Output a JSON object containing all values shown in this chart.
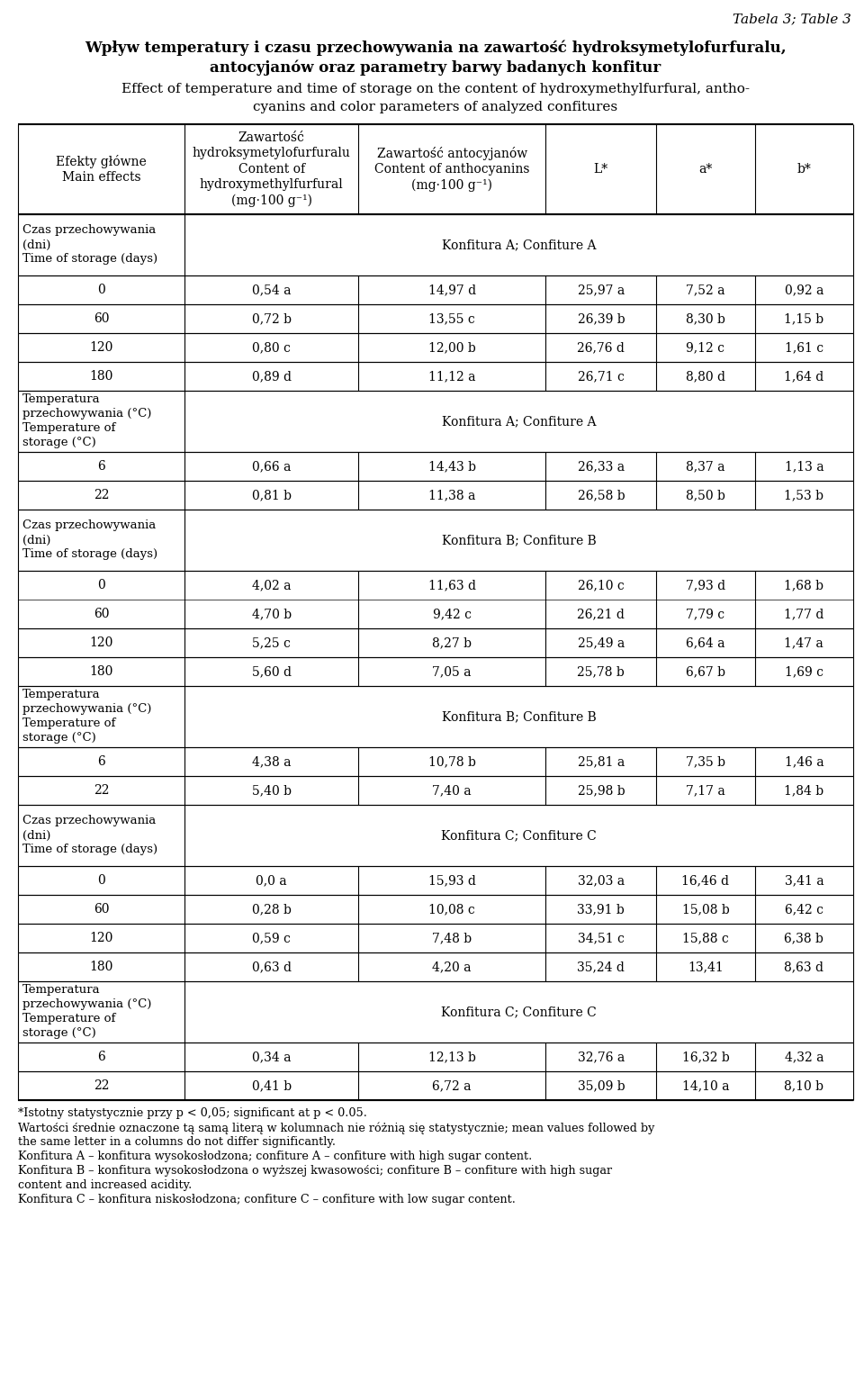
{
  "title_line1": "Tabela 3; Table 3",
  "title_line2": "Wpływ temperatury i czasu przechowywania na zawartość hydroksymetylofurfuralu,",
  "title_line3": "antocyjanów oraz parametry barwy badanych konfitur",
  "title_line4": "Effect of temperature and time of storage on the content of hydroxymethylfurfural, antho-",
  "title_line5": "cyanins and color parameters of analyzed confitures",
  "col_headers": [
    "Efekty główne\nMain effects",
    "Zawartość\nhydroksymetylofurfuralu\nContent of\nhydroxymethylfurfural\n(mg·100 g⁻¹)",
    "Zawartość antocyjanów\nContent of anthocyanins\n(mg·100 g⁻¹)",
    "L*",
    "a*",
    "b*"
  ],
  "rows": [
    {
      "type": "section",
      "col1": "Czas przechowywania\n(dni)\nTime of storage (days)",
      "span_text": "Konfitura A; Confiture A"
    },
    {
      "type": "data",
      "col1": "0",
      "col2": "0,54 a",
      "col3": "14,97 d",
      "col4": "25,97 a",
      "col5": "7,52 a",
      "col6": "0,92 a"
    },
    {
      "type": "data",
      "col1": "60",
      "col2": "0,72 b",
      "col3": "13,55 c",
      "col4": "26,39 b",
      "col5": "8,30 b",
      "col6": "1,15 b"
    },
    {
      "type": "data",
      "col1": "120",
      "col2": "0,80 c",
      "col3": "12,00 b",
      "col4": "26,76 d",
      "col5": "9,12 c",
      "col6": "1,61 c"
    },
    {
      "type": "data",
      "col1": "180",
      "col2": "0,89 d",
      "col3": "11,12 a",
      "col4": "26,71 c",
      "col5": "8,80 d",
      "col6": "1,64 d"
    },
    {
      "type": "section",
      "col1": "Temperatura\nprzechowywania (°C)\nTemperature of\nstorage (°C)",
      "span_text": "Konfitura A; Confiture A"
    },
    {
      "type": "data",
      "col1": "6",
      "col2": "0,66 a",
      "col3": "14,43 b",
      "col4": "26,33 a",
      "col5": "8,37 a",
      "col6": "1,13 a"
    },
    {
      "type": "data",
      "col1": "22",
      "col2": "0,81 b",
      "col3": "11,38 a",
      "col4": "26,58 b",
      "col5": "8,50 b",
      "col6": "1,53 b"
    },
    {
      "type": "section",
      "col1": "Czas przechowywania\n(dni)\nTime of storage (days)",
      "span_text": "Konfitura B; Confiture B"
    },
    {
      "type": "merged_top",
      "col1a": "0",
      "col1b": "60",
      "col2a": "4,02 a",
      "col3a": "11,63 d",
      "col4a": "26,10 c",
      "col5a": "7,93 d",
      "col6a": "1,68 b",
      "col2b": "4,70 b",
      "col3b": "9,42 c",
      "col4b": "26,21 d",
      "col5b": "7,79 c",
      "col6b": "1,77 d"
    },
    {
      "type": "data",
      "col1": "120",
      "col2": "5,25 c",
      "col3": "8,27 b",
      "col4": "25,49 a",
      "col5": "6,64 a",
      "col6": "1,47 a"
    },
    {
      "type": "data",
      "col1": "180",
      "col2": "5,60 d",
      "col3": "7,05 a",
      "col4": "25,78 b",
      "col5": "6,67 b",
      "col6": "1,69 c"
    },
    {
      "type": "section",
      "col1": "Temperatura\nprzechowywania (°C)\nTemperature of\nstorage (°C)",
      "span_text": "Konfitura B; Confiture B"
    },
    {
      "type": "data",
      "col1": "6",
      "col2": "4,38 a",
      "col3": "10,78 b",
      "col4": "25,81 a",
      "col5": "7,35 b",
      "col6": "1,46 a"
    },
    {
      "type": "data",
      "col1": "22",
      "col2": "5,40 b",
      "col3": "7,40 a",
      "col4": "25,98 b",
      "col5": "7,17 a",
      "col6": "1,84 b"
    },
    {
      "type": "section",
      "col1": "Czas przechowywania\n(dni)\nTime of storage (days)",
      "span_text": "Konfitura C; Confiture C"
    },
    {
      "type": "data",
      "col1": "0",
      "col2": "0,0 a",
      "col3": "15,93 d",
      "col4": "32,03 a",
      "col5": "16,46 d",
      "col6": "3,41 a"
    },
    {
      "type": "data",
      "col1": "60",
      "col2": "0,28 b",
      "col3": "10,08 c",
      "col4": "33,91 b",
      "col5": "15,08 b",
      "col6": "6,42 c"
    },
    {
      "type": "data",
      "col1": "120",
      "col2": "0,59 c",
      "col3": "7,48 b",
      "col4": "34,51 c",
      "col5": "15,88 c",
      "col6": "6,38 b"
    },
    {
      "type": "data",
      "col1": "180",
      "col2": "0,63 d",
      "col3": "4,20 a",
      "col4": "35,24 d",
      "col5": "13,41",
      "col6": "8,63 d"
    },
    {
      "type": "section",
      "col1": "Temperatura\nprzechowywania (°C)\nTemperature of\nstorage (°C)",
      "span_text": "Konfitura C; Confiture C"
    },
    {
      "type": "data",
      "col1": "6",
      "col2": "0,34 a",
      "col3": "12,13 b",
      "col4": "32,76 a",
      "col5": "16,32 b",
      "col6": "4,32 a"
    },
    {
      "type": "data",
      "col1": "22",
      "col2": "0,41 b",
      "col3": "6,72 a",
      "col4": "35,09 b",
      "col5": "14,10 a",
      "col6": "8,10 b"
    }
  ],
  "footnotes": [
    "*Istotny statystycznie przy p < 0,05; significant at p < 0.05.",
    "Wartości średnie oznaczone tą samą literą w kolumnach nie różnią się statystycznie; mean values followed by",
    "the same letter in a columns do not differ significantly.",
    "Konfitura A – konfitura wysokosłodzona; confiture A – confiture with high sugar content.",
    "Konfitura B – konfitura wysokosłodzona o wyższej kwasowości; confiture B – confiture with high sugar",
    "content and increased acidity.",
    "Konfitura C – konfitura niskosłodzona; confiture C – confiture with low sugar content."
  ]
}
